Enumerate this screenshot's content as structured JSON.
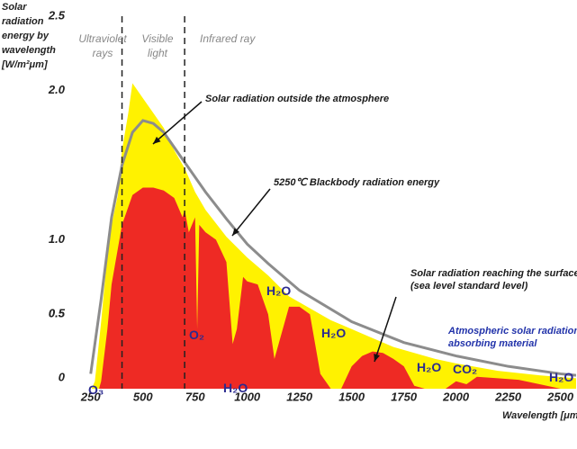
{
  "chart_data": {
    "type": "area",
    "y_title_lines": [
      "Solar",
      "radiation",
      "energy by",
      "wavelength",
      "[W/m²μm]"
    ],
    "x_title": "Wavelength [μm",
    "xlim": [
      195,
      2575
    ],
    "ylim": [
      0,
      2.5
    ],
    "xticks": [
      250,
      500,
      750,
      1000,
      1250,
      1500,
      1750,
      2000,
      2250,
      2500
    ],
    "yticks": [
      0,
      0.5,
      {
        "value": 1,
        "label": "1.0"
      },
      0.5,
      {
        "value": 2,
        "label": "2.0"
      },
      2.5
    ],
    "region_bounds": [
      400,
      700
    ],
    "region_labels": [
      [
        "Ultraviolet",
        "rays"
      ],
      [
        "Visible",
        "light"
      ],
      [
        "Infrared ray"
      ]
    ],
    "series": [
      {
        "name": "Solar radiation outside the atmosphere",
        "mark": "area",
        "color": "#fff200",
        "x": [
          255,
          270,
          300,
          330,
          350,
          380,
          400,
          430,
          450,
          475,
          500,
          550,
          600,
          650,
          700,
          750,
          800,
          900,
          1000,
          1100,
          1200,
          1300,
          1400,
          1500,
          1600,
          1700,
          1800,
          1900,
          2000,
          2200,
          2400,
          2575
        ],
        "values": [
          0,
          0.05,
          0.45,
          0.9,
          1.1,
          1.3,
          1.6,
          1.85,
          2.05,
          2.0,
          1.95,
          1.85,
          1.75,
          1.6,
          1.48,
          1.32,
          1.2,
          1.02,
          0.88,
          0.76,
          0.62,
          0.54,
          0.46,
          0.4,
          0.34,
          0.28,
          0.24,
          0.2,
          0.17,
          0.12,
          0.09,
          0.07
        ]
      },
      {
        "name": "Solar radiation reaching the surface (sea level standard level)",
        "mark": "area",
        "color": "#ee2a24",
        "x": [
          290,
          300,
          330,
          350,
          400,
          450,
          500,
          550,
          600,
          650,
          690,
          700,
          720,
          750,
          760,
          770,
          800,
          850,
          900,
          930,
          950,
          980,
          1000,
          1050,
          1100,
          1130,
          1150,
          1200,
          1250,
          1300,
          1350,
          1400,
          1450,
          1500,
          1550,
          1600,
          1650,
          1700,
          1750,
          1800,
          1850,
          1950,
          2000,
          2050,
          2100,
          2200,
          2300,
          2400,
          2500,
          2575
        ],
        "values": [
          0,
          0.05,
          0.4,
          0.7,
          1.1,
          1.3,
          1.35,
          1.35,
          1.33,
          1.28,
          1.15,
          1.2,
          1.05,
          1.15,
          0.4,
          1.1,
          1.05,
          1.0,
          0.85,
          0.3,
          0.4,
          0.75,
          0.72,
          0.7,
          0.5,
          0.2,
          0.3,
          0.55,
          0.55,
          0.5,
          0.1,
          0,
          0,
          0.15,
          0.22,
          0.25,
          0.24,
          0.2,
          0.15,
          0.02,
          0,
          0,
          0.05,
          0.03,
          0.08,
          0.07,
          0.06,
          0.03,
          0,
          0
        ]
      },
      {
        "name": "5250℃ Blackbody radiation energy",
        "mark": "line",
        "color": "#8c8c8c",
        "x": [
          250,
          300,
          350,
          400,
          450,
          500,
          550,
          600,
          700,
          800,
          900,
          1000,
          1100,
          1250,
          1500,
          1750,
          2000,
          2250,
          2500,
          2575
        ],
        "values": [
          0.1,
          0.6,
          1.15,
          1.5,
          1.72,
          1.8,
          1.78,
          1.72,
          1.52,
          1.32,
          1.14,
          0.97,
          0.84,
          0.66,
          0.45,
          0.31,
          0.22,
          0.15,
          0.1,
          0.09
        ]
      }
    ],
    "absorber_title": "Atmospheric solar radiation absorbing material",
    "absorbers": [
      "O₃",
      "O₂",
      "H₂O",
      "H₂O",
      "H₂O",
      "H₂O",
      "CO₂",
      "H₂O"
    ]
  }
}
